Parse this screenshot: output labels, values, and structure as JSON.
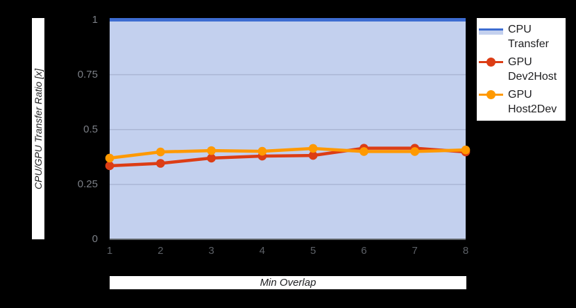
{
  "figure": {
    "background_color": "#000000",
    "plot_fill_color": "#c3d0ee",
    "gridline_color": "#aab6d4",
    "baseline_color": "#5f6368"
  },
  "legend": {
    "items": [
      {
        "label": "CPU Transfer",
        "color": "#3d6cd1",
        "fill": "#c3d0ee",
        "symbol": "area-line"
      },
      {
        "label": "GPU Dev2Host",
        "color": "#dc3d15",
        "symbol": "line-dot"
      },
      {
        "label": "GPU Host2Dev",
        "color": "#ff9900",
        "symbol": "line-dot"
      }
    ]
  },
  "chart_data": {
    "type": "line",
    "title": "",
    "xlabel": "Min Overlap",
    "ylabel": "CPU/GPU Transfer Ratio [x]",
    "x": [
      1,
      2,
      3,
      4,
      5,
      6,
      7,
      8
    ],
    "x_tick_labels": [
      "1",
      "2",
      "3",
      "4",
      "5",
      "6",
      "7",
      "8"
    ],
    "y_ticks": [
      0,
      0.25,
      0.5,
      0.75,
      1
    ],
    "y_tick_labels": [
      "0",
      "0.25",
      "0.5",
      "0.75",
      "1"
    ],
    "ylim": [
      0,
      1
    ],
    "grid": true,
    "legend_position": "right",
    "series": [
      {
        "name": "CPU Transfer",
        "type": "area",
        "color": "#3d6cd1",
        "fill": "#c3d0ee",
        "marker": false,
        "values": [
          1,
          1,
          1,
          1,
          1,
          1,
          1,
          1
        ]
      },
      {
        "name": "GPU Dev2Host",
        "type": "line",
        "color": "#dc3d15",
        "marker": true,
        "values": [
          0.335,
          0.346,
          0.37,
          0.379,
          0.382,
          0.415,
          0.415,
          0.398
        ]
      },
      {
        "name": "GPU Host2Dev",
        "type": "line",
        "color": "#ff9900",
        "marker": true,
        "values": [
          0.37,
          0.398,
          0.404,
          0.401,
          0.414,
          0.4,
          0.4,
          0.407
        ]
      }
    ]
  }
}
